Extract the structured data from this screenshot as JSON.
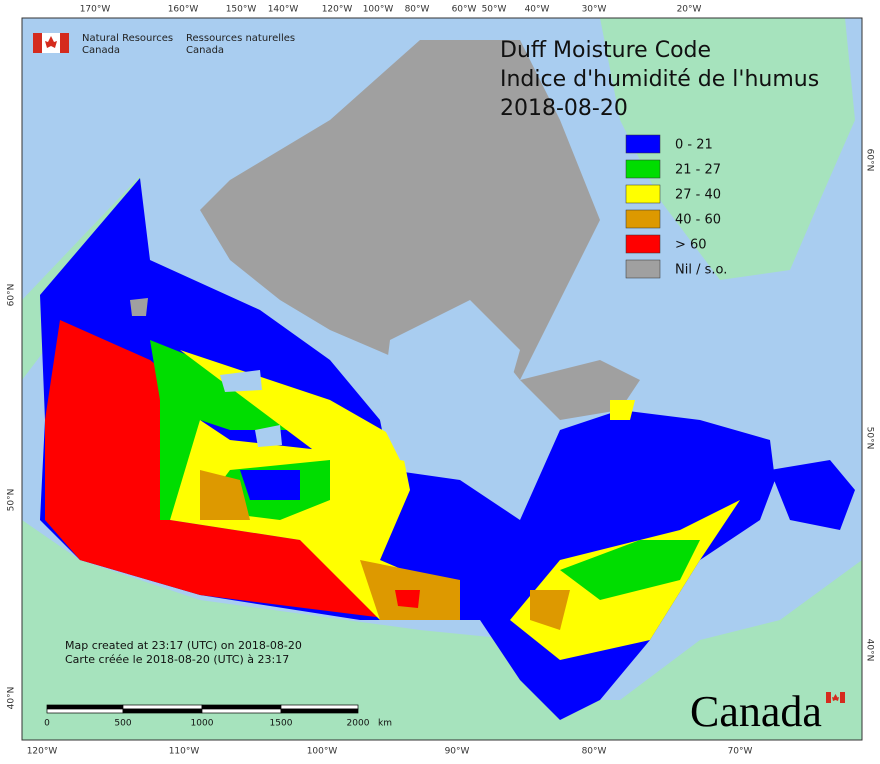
{
  "agency": {
    "en_line1": "Natural Resources",
    "en_line2": "Canada",
    "fr_line1": "Ressources naturelles",
    "fr_line2": "Canada"
  },
  "title": [
    "Duff Moisture Code",
    "Indice d'humidité de l'humus",
    "2018-08-20"
  ],
  "legend": [
    {
      "label": "0 - 21",
      "color": "#0000ff"
    },
    {
      "label": "21 - 27",
      "color": "#00dd00"
    },
    {
      "label": "27 - 40",
      "color": "#ffff00"
    },
    {
      "label": "40 - 60",
      "color": "#dd9900"
    },
    {
      "label": "> 60",
      "color": "#ff0000"
    },
    {
      "label": "Nil / s.o.",
      "color": "#a0a0a0"
    }
  ],
  "graticule": {
    "top": [
      "170°W",
      "160°W",
      "150°W",
      "140°W",
      "120°W",
      "100°W",
      "80°W",
      "60°W",
      "50°W",
      "40°W",
      "30°W",
      "20°W"
    ],
    "bottom": [
      "120°W",
      "110°W",
      "100°W",
      "90°W",
      "80°W",
      "70°W"
    ],
    "left": [
      "60°N",
      "50°N",
      "40°N"
    ],
    "right": [
      "60°N",
      "50°N",
      "40°N"
    ]
  },
  "notes": [
    "Map created at 23:17 (UTC) on 2018-08-20",
    "Carte créée le 2018-08-20 (UTC) à 23:17"
  ],
  "scale_bar": {
    "labels": [
      "0",
      "500",
      "1000",
      "1500",
      "2000"
    ],
    "unit": "km"
  },
  "wordmark": "Canada"
}
